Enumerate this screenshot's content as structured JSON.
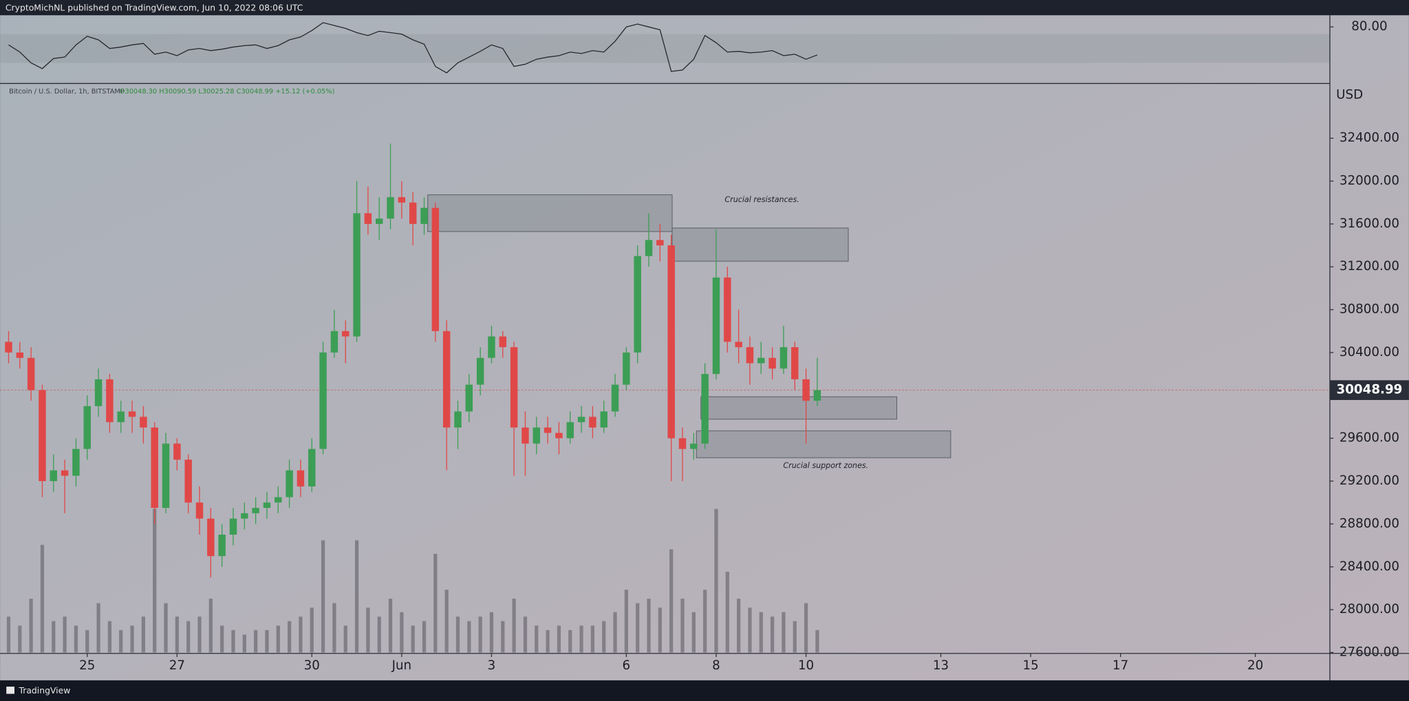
{
  "header": {
    "title": "CryptoMichNL published on TradingView.com, Jun 10, 2022 08:06 UTC"
  },
  "footer": {
    "brand": "TradingView"
  },
  "chart_data": {
    "type": "candlestick",
    "symbol": "Bitcoin / U.S. Dollar, 1h, BITSTAMP",
    "ohlc_text": "O30048.30 H30090.59 L30025.28 C30048.99 +15.12 (+0.05%)",
    "currency": "USD",
    "last_price": 30048.99,
    "up_color": "#3c9e55",
    "down_color": "#e04848",
    "xlim": [
      23.06,
      52.66
    ],
    "ylim": [
      27600,
      32911
    ],
    "xticks": [
      25,
      27,
      30,
      {
        "value": 32,
        "label": "Jun"
      },
      {
        "value": 34,
        "label": "3"
      },
      {
        "value": 37,
        "label": "6"
      },
      {
        "value": 39,
        "label": "8"
      },
      {
        "value": 41,
        "label": "10"
      },
      {
        "value": 44,
        "label": "13"
      },
      {
        "value": 46,
        "label": "15"
      },
      {
        "value": 48,
        "label": "17"
      },
      {
        "value": 51,
        "label": "20"
      }
    ],
    "yticks": [
      {
        "value": 27600,
        "label": "27600.00"
      },
      {
        "value": 28000,
        "label": "28000.00"
      },
      {
        "value": 28400,
        "label": "28400.00"
      },
      {
        "value": 28800,
        "label": "28800.00"
      },
      {
        "value": 29200,
        "label": "29200.00"
      },
      {
        "value": 29600,
        "label": "29600.00"
      },
      {
        "value": 30000,
        "label": "30000.00"
      },
      {
        "value": 30400,
        "label": "30400.00"
      },
      {
        "value": 30800,
        "label": "30800.00"
      },
      {
        "value": 31200,
        "label": "31200.00"
      },
      {
        "value": 31600,
        "label": "31600.00"
      },
      {
        "value": 32000,
        "label": "32000.00"
      },
      {
        "value": 32400,
        "label": "32400.00"
      }
    ],
    "candles": {
      "x": [
        23.25,
        23.5,
        23.75,
        24,
        24.25,
        24.5,
        24.75,
        25,
        25.25,
        25.5,
        25.75,
        26,
        26.25,
        26.5,
        26.75,
        27,
        27.25,
        27.5,
        27.75,
        28,
        28.25,
        28.5,
        28.75,
        29,
        29.25,
        29.5,
        29.75,
        30,
        30.25,
        30.5,
        30.75,
        31,
        31.25,
        31.5,
        31.75,
        32,
        32.25,
        32.5,
        32.75,
        33,
        33.25,
        33.5,
        33.75,
        34,
        34.25,
        34.5,
        34.75,
        35,
        35.25,
        35.5,
        35.75,
        36,
        36.25,
        36.5,
        36.75,
        37,
        37.25,
        37.5,
        37.75,
        38,
        38.25,
        38.5,
        38.75,
        39,
        39.25,
        39.5,
        39.75,
        40,
        40.25,
        40.5,
        40.75,
        41,
        41.25
      ],
      "open": [
        30500,
        30400,
        30350,
        30050,
        29200,
        29300,
        29250,
        29500,
        29900,
        30150,
        29750,
        29850,
        29800,
        29700,
        28950,
        29550,
        29400,
        29000,
        28850,
        28500,
        28700,
        28850,
        28900,
        28950,
        29000,
        29050,
        29300,
        29150,
        29500,
        30400,
        30600,
        30550,
        31700,
        31600,
        31650,
        31850,
        31800,
        31600,
        31750,
        30600,
        29700,
        29850,
        30100,
        30350,
        30550,
        30450,
        29700,
        29550,
        29700,
        29650,
        29600,
        29750,
        29800,
        29700,
        29850,
        30100,
        30400,
        31300,
        31450,
        31400,
        29600,
        29500,
        29550,
        30200,
        31100,
        30500,
        30450,
        30300,
        30350,
        30250,
        30450,
        30150,
        29950
      ],
      "high": [
        30600,
        30500,
        30450,
        30100,
        29450,
        29400,
        29600,
        30000,
        30250,
        30200,
        29950,
        29950,
        29900,
        29750,
        29650,
        29600,
        29450,
        29150,
        28950,
        28800,
        28950,
        29000,
        29050,
        29100,
        29150,
        29400,
        29400,
        29600,
        30500,
        30800,
        30700,
        32000,
        31950,
        31850,
        32350,
        32000,
        31900,
        31850,
        31800,
        30700,
        29950,
        30200,
        30450,
        30650,
        30600,
        30500,
        29850,
        29800,
        29800,
        29750,
        29850,
        29900,
        29900,
        29950,
        30200,
        30450,
        31400,
        31700,
        31600,
        31500,
        29700,
        29650,
        30300,
        31550,
        31200,
        30800,
        30550,
        30500,
        30450,
        30650,
        30500,
        30250,
        30350
      ],
      "low": [
        30300,
        30250,
        29950,
        29050,
        29100,
        28900,
        29150,
        29400,
        29800,
        29650,
        29650,
        29650,
        29550,
        28800,
        28900,
        29300,
        28900,
        28700,
        28300,
        28400,
        28600,
        28750,
        28800,
        28850,
        28900,
        28950,
        29050,
        29100,
        29450,
        30350,
        30300,
        30500,
        31500,
        31450,
        31550,
        31650,
        31400,
        31500,
        30500,
        29300,
        29500,
        29750,
        30000,
        30300,
        30350,
        29250,
        29250,
        29450,
        29550,
        29450,
        29550,
        29650,
        29600,
        29650,
        29800,
        30050,
        30300,
        31200,
        31250,
        29200,
        29200,
        29400,
        29500,
        30150,
        30400,
        30300,
        30100,
        30200,
        30150,
        30200,
        30050,
        29550,
        29900
      ],
      "close": [
        30400,
        30350,
        30050,
        29200,
        29300,
        29250,
        29500,
        29900,
        30150,
        29750,
        29850,
        29800,
        29700,
        28950,
        29550,
        29400,
        29000,
        28850,
        28500,
        28700,
        28850,
        28900,
        28950,
        29000,
        29050,
        29300,
        29150,
        29500,
        30400,
        30600,
        30550,
        31700,
        31600,
        31650,
        31850,
        31800,
        31600,
        31750,
        30600,
        29700,
        29850,
        30100,
        30350,
        30550,
        30450,
        29700,
        29550,
        29700,
        29650,
        29600,
        29750,
        29800,
        29700,
        29850,
        30100,
        30400,
        31300,
        31450,
        31400,
        29600,
        29500,
        29550,
        30200,
        31100,
        30500,
        30450,
        30300,
        30350,
        30250,
        30450,
        30150,
        29950,
        30048.99
      ],
      "volume": [
        40,
        30,
        60,
        120,
        35,
        40,
        30,
        25,
        55,
        35,
        25,
        30,
        40,
        160,
        55,
        40,
        35,
        40,
        60,
        30,
        25,
        20,
        25,
        25,
        30,
        35,
        40,
        50,
        125,
        55,
        30,
        125,
        50,
        40,
        60,
        45,
        30,
        35,
        110,
        70,
        40,
        35,
        40,
        45,
        35,
        60,
        40,
        30,
        25,
        30,
        25,
        30,
        30,
        35,
        45,
        70,
        55,
        60,
        50,
        115,
        60,
        45,
        70,
        160,
        90,
        60,
        50,
        45,
        40,
        45,
        35,
        55,
        25
      ]
    },
    "zones": [
      {
        "x": [
          32.58,
          38.02
        ],
        "y": [
          31529,
          31872
        ]
      },
      {
        "x": [
          38.02,
          41.94
        ],
        "y": [
          31252,
          31562
        ]
      },
      {
        "x": [
          38.66,
          43.02
        ],
        "y": [
          29778,
          29987
        ]
      },
      {
        "x": [
          38.56,
          44.22
        ],
        "y": [
          29418,
          29669
        ]
      }
    ],
    "annotations": [
      "Crucial resistances.",
      "Crucial support zones."
    ],
    "rsi": {
      "ylim": [
        1.25,
        96.25
      ],
      "yticks": [
        {
          "value": 80,
          "label": "80.00"
        }
      ],
      "band": [
        30,
        70
      ],
      "color": "#26282d",
      "values": [
        55,
        45,
        30,
        22,
        36,
        38,
        55,
        67,
        62,
        50,
        52,
        55,
        57,
        42,
        45,
        40,
        48,
        50,
        47,
        49,
        52,
        54,
        55,
        50,
        54,
        62,
        66,
        75,
        86,
        82,
        78,
        72,
        68,
        74,
        72,
        70,
        62,
        56,
        25,
        16,
        30,
        38,
        46,
        55,
        50,
        25,
        28,
        35,
        38,
        40,
        45,
        43,
        47,
        45,
        60,
        80,
        84,
        80,
        76,
        18,
        20,
        35,
        68,
        58,
        45,
        46,
        44,
        45,
        47,
        40,
        42,
        35,
        41
      ]
    }
  }
}
